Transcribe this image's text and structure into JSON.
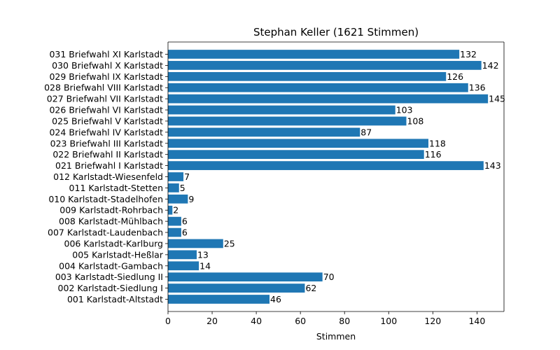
{
  "chart_data": {
    "type": "bar",
    "orientation": "horizontal",
    "title": "Stephan Keller (1621 Stimmen)",
    "xlabel": "Stimmen",
    "ylabel": "",
    "xlim": [
      0,
      152.25
    ],
    "xticks": [
      0,
      20,
      40,
      60,
      80,
      100,
      120,
      140
    ],
    "grid": false,
    "bar_color": "#1f77b4",
    "categories": [
      "001 Karlstadt-Altstadt",
      "002 Karlstadt-Siedlung I",
      "003 Karlstadt-Siedlung II",
      "004 Karlstadt-Gambach",
      "005 Karlstadt-Heßlar",
      "006 Karlstadt-Karlburg",
      "007 Karlstadt-Laudenbach",
      "008 Karlstadt-Mühlbach",
      "009 Karlstadt-Rohrbach",
      "010 Karlstadt-Stadelhofen",
      "011 Karlstadt-Stetten",
      "012 Karlstadt-Wiesenfeld",
      "021 Briefwahl I Karlstadt",
      "022 Briefwahl II Karlstadt",
      "023 Briefwahl III Karlstadt",
      "024 Briefwahl IV Karlstadt",
      "025 Briefwahl V Karlstadt",
      "026 Briefwahl VI Karlstadt",
      "027 Briefwahl VII Karlstadt",
      "028 Briefwahl VIII Karlstadt",
      "029 Briefwahl IX Karlstadt",
      "030 Briefwahl X Karlstadt",
      "031 Briefwahl XI Karlstadt"
    ],
    "values": [
      46,
      62,
      70,
      14,
      13,
      25,
      6,
      6,
      2,
      9,
      5,
      7,
      143,
      116,
      118,
      87,
      108,
      103,
      145,
      136,
      126,
      142,
      132
    ]
  }
}
